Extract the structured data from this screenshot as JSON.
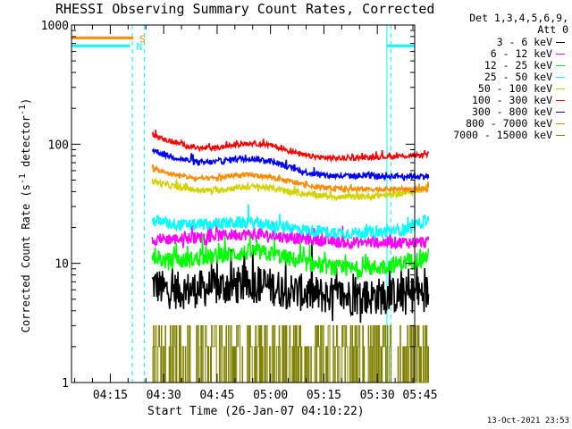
{
  "chart_data": {
    "type": "line",
    "title": "RHESSI Observing Summary Count Rates, Corrected",
    "xlabel": "Start Time (26-Jan-07 04:10:22)",
    "ylabel_prefix": "Corrected Count Rate (s",
    "ylabel_sup1": "-1",
    "ylabel_mid": " detector",
    "ylabel_sup2": "-1",
    "ylabel_suffix": ")",
    "y_scale": "log",
    "ylim": [
      1,
      1000
    ],
    "xlim_minutes": [
      4.1,
      100.5
    ],
    "x_axis_origin": "04:10:22",
    "y_ticks": [
      {
        "value": 1,
        "label": "1"
      },
      {
        "value": 10,
        "label": "10"
      },
      {
        "value": 100,
        "label": "100"
      },
      {
        "value": 1000,
        "label": "1000"
      }
    ],
    "x_ticks": [
      {
        "minute": 15,
        "label": "04:15"
      },
      {
        "minute": 30,
        "label": "04:30"
      },
      {
        "minute": 45,
        "label": "04:45"
      },
      {
        "minute": 60,
        "label": "05:00"
      },
      {
        "minute": 75,
        "label": "05:15"
      },
      {
        "minute": 90,
        "label": "05:30"
      },
      {
        "minute": 105,
        "label": "05:45"
      }
    ],
    "legend_header_1": "Det 1,3,4,5,6,9,",
    "legend_header_2": "Att 0",
    "legend_placement": "right",
    "series": [
      {
        "name": "3 - 6 keV",
        "color": "#000000",
        "x": [
          26.8,
          30,
          35,
          40,
          45,
          50,
          55,
          60,
          65,
          70,
          75,
          80,
          85,
          90,
          95,
          100,
          104.4
        ],
        "y": [
          6.8,
          6.0,
          5.9,
          6.1,
          6.3,
          6.5,
          6.7,
          6.4,
          5.9,
          5.6,
          5.4,
          5.3,
          5.2,
          5.3,
          5.4,
          5.5,
          5.7
        ],
        "noise": 0.16
      },
      {
        "name": "6 - 12 keV",
        "color": "#ff00ff",
        "x": [
          26.8,
          30,
          35,
          40,
          45,
          50,
          55,
          60,
          65,
          70,
          75,
          80,
          85,
          90,
          95,
          100,
          104.4
        ],
        "y": [
          16,
          16,
          16,
          16.5,
          17,
          17.5,
          17.5,
          17,
          16.5,
          16,
          15.5,
          15,
          15,
          15,
          15,
          15,
          15
        ],
        "noise": 0.05
      },
      {
        "name": "12 - 25 keV",
        "color": "#00ff00",
        "x": [
          26.8,
          30,
          35,
          40,
          45,
          50,
          55,
          60,
          65,
          70,
          75,
          80,
          85,
          90,
          95,
          100,
          104.4
        ],
        "y": [
          11.5,
          10.5,
          10.5,
          11,
          11.5,
          12,
          12.5,
          12,
          11,
          10,
          9.5,
          9,
          9,
          9.2,
          9.8,
          10.5,
          11.5
        ],
        "noise": 0.07
      },
      {
        "name": "25 - 50 keV",
        "color": "#00ffff",
        "x": [
          26.8,
          30,
          35,
          40,
          45,
          50,
          55,
          60,
          65,
          70,
          75,
          80,
          85,
          90,
          95,
          100,
          104.4
        ],
        "y": [
          23,
          22,
          21,
          21,
          21.5,
          22,
          22,
          21,
          20,
          19,
          18.5,
          18,
          18,
          18.2,
          18.8,
          20,
          24
        ],
        "noise": 0.05
      },
      {
        "name": "50 - 100 keV",
        "color": "#d2d200",
        "x": [
          26.8,
          30,
          35,
          40,
          45,
          50,
          55,
          60,
          65,
          70,
          75,
          80,
          85,
          90,
          95,
          100,
          104.4
        ],
        "y": [
          49,
          46,
          43,
          41,
          41,
          43,
          44,
          43,
          40,
          38,
          37,
          36,
          36,
          37,
          38,
          40,
          44
        ],
        "noise": 0.025
      },
      {
        "name": "100 - 300 keV",
        "color": "#ff0000",
        "x": [
          26.8,
          30,
          35,
          40,
          45,
          50,
          55,
          60,
          65,
          70,
          75,
          80,
          85,
          90,
          95,
          100,
          104.4
        ],
        "y": [
          120,
          110,
          100,
          92,
          93,
          99,
          102,
          98,
          88,
          80,
          77,
          76,
          77,
          78,
          79,
          80,
          82
        ],
        "noise": 0.02
      },
      {
        "name": "300 - 800 keV",
        "color": "#0000ff",
        "x": [
          26.8,
          30,
          35,
          40,
          45,
          50,
          55,
          60,
          65,
          70,
          75,
          80,
          85,
          90,
          95,
          100,
          104.4
        ],
        "y": [
          90,
          82,
          75,
          70,
          71,
          75,
          76,
          72,
          64,
          58,
          55,
          54,
          54,
          54,
          54,
          54,
          54
        ],
        "noise": 0.025
      },
      {
        "name": "800 - 7000 keV",
        "color": "#ff8c00",
        "x": [
          26.8,
          30,
          35,
          40,
          45,
          50,
          55,
          60,
          65,
          70,
          75,
          80,
          85,
          90,
          95,
          100,
          104.4
        ],
        "y": [
          63,
          58,
          54,
          51,
          52,
          55,
          55,
          53,
          49,
          45,
          43,
          42,
          42,
          42,
          42,
          42,
          42
        ],
        "noise": 0.02
      },
      {
        "name": "7000 - 15000 keV",
        "color": "#808000",
        "x": [
          26.8,
          104.4
        ],
        "y": [
          1.8,
          1.8
        ],
        "noise": 0.3
      }
    ],
    "flag_bars": [
      {
        "x0": 4.1,
        "x1": 21.5,
        "y": 780,
        "color": "#ff8c00"
      },
      {
        "x0": 4.1,
        "x1": 20.5,
        "y": 670,
        "color": "#00ffff"
      },
      {
        "x0": 92.7,
        "x1": 100.5,
        "y": 670,
        "color": "#00ffff"
      }
    ],
    "flag_markers": [
      {
        "text": "S",
        "x": 23.2,
        "y": 780,
        "color": "#ff8c00"
      },
      {
        "text": "N",
        "x": 22.3,
        "y": 670,
        "color": "#00ffff"
      }
    ],
    "vlines_solid": [
      {
        "x": 4.1,
        "color": "#00ffff"
      },
      {
        "x": 92.7,
        "color": "#00ffff"
      }
    ],
    "vlines_dashed": [
      {
        "x": 21.2,
        "color": "#00ffff"
      },
      {
        "x": 24.6,
        "color": "#00ffff"
      },
      {
        "x": 93.8,
        "color": "#00ffff"
      },
      {
        "x": 100.5,
        "color": "#00ffff"
      }
    ]
  },
  "timestamp": "13-Oct-2021 23:53"
}
